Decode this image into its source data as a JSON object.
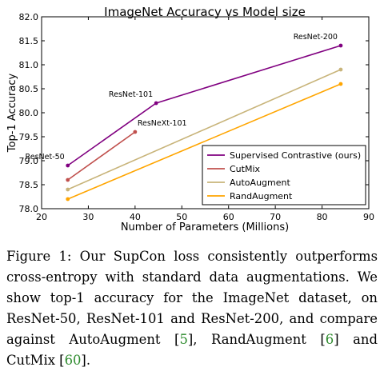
{
  "chart_data": {
    "type": "line",
    "title": "ImageNet Accuracy vs Model size",
    "xlabel": "Number of Parameters (Millions)",
    "ylabel": "Top-1 Accuracy",
    "xlim": [
      20,
      90
    ],
    "ylim": [
      78.0,
      82.0
    ],
    "xticks": [
      20,
      30,
      40,
      50,
      60,
      70,
      80,
      90
    ],
    "yticks": [
      78.0,
      78.5,
      79.0,
      79.5,
      80.0,
      80.5,
      81.0,
      81.5,
      82.0
    ],
    "grid": false,
    "legend_position": "bottom-right",
    "series": [
      {
        "name": "Supervised Contrastive (ours)",
        "color": "#800080",
        "points": [
          {
            "x": 25.6,
            "y": 78.9
          },
          {
            "x": 44.5,
            "y": 80.2
          },
          {
            "x": 84.0,
            "y": 81.4
          }
        ]
      },
      {
        "name": "CutMix",
        "color": "#c0504d",
        "points": [
          {
            "x": 25.6,
            "y": 78.6
          },
          {
            "x": 40.0,
            "y": 79.6
          }
        ]
      },
      {
        "name": "AutoAugment",
        "color": "#c8b47a",
        "points": [
          {
            "x": 25.6,
            "y": 78.4
          },
          {
            "x": 84.0,
            "y": 80.9
          }
        ]
      },
      {
        "name": "RandAugment",
        "color": "#ffa500",
        "points": [
          {
            "x": 25.6,
            "y": 78.2
          },
          {
            "x": 84.0,
            "y": 80.6
          }
        ]
      }
    ],
    "annotations": [
      {
        "text": "ResNet-50",
        "x": 25.6,
        "y": 78.9,
        "anchor": "above-left"
      },
      {
        "text": "ResNet-101",
        "x": 44.5,
        "y": 80.2,
        "anchor": "above-left"
      },
      {
        "text": "ResNeXt-101",
        "x": 40.0,
        "y": 79.6,
        "anchor": "above-right"
      },
      {
        "text": "ResNet-200",
        "x": 84.0,
        "y": 81.4,
        "anchor": "above-left"
      }
    ]
  },
  "caption": {
    "label": "Figure 1:",
    "text_1": " Our SupCon loss consistently outperforms cross-entropy with standard data augmentations. We show top-1 accuracy for the ImageNet dataset, on ResNet-50, ResNet-101 and ResNet-200, and compare against AutoAugment [",
    "cite_1": "5",
    "text_2": "], RandAugment [",
    "cite_2": "6",
    "text_3": "] and CutMix [",
    "cite_3": "60",
    "text_4": "]."
  }
}
